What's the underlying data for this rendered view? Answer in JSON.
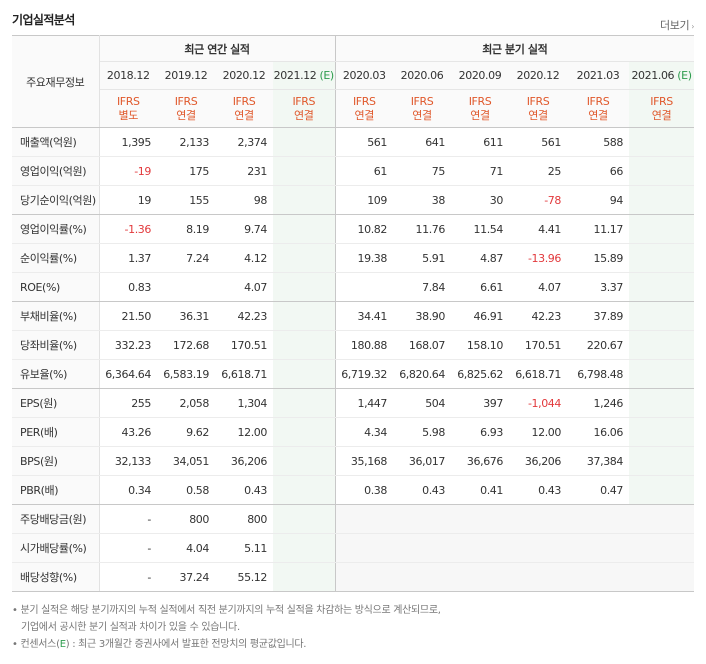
{
  "header": {
    "title": "기업실적분석",
    "more_label": "더보기"
  },
  "table": {
    "row_label_header": "주요재무정보",
    "group_annual": "최근 연간 실적",
    "group_quarter": "최근 분기 실적",
    "columns": [
      {
        "period": "2018.12",
        "std": "IFRS",
        "type": "별도",
        "est": false
      },
      {
        "period": "2019.12",
        "std": "IFRS",
        "type": "연결",
        "est": false
      },
      {
        "period": "2020.12",
        "std": "IFRS",
        "type": "연결",
        "est": false
      },
      {
        "period": "2021.12",
        "est_mark": "(E)",
        "std": "IFRS",
        "type": "연결",
        "est": true
      },
      {
        "period": "2020.03",
        "std": "IFRS",
        "type": "연결",
        "est": false
      },
      {
        "period": "2020.06",
        "std": "IFRS",
        "type": "연결",
        "est": false
      },
      {
        "period": "2020.09",
        "std": "IFRS",
        "type": "연결",
        "est": false
      },
      {
        "period": "2020.12",
        "std": "IFRS",
        "type": "연결",
        "est": false
      },
      {
        "period": "2021.03",
        "std": "IFRS",
        "type": "연결",
        "est": false
      },
      {
        "period": "2021.06",
        "est_mark": "(E)",
        "std": "IFRS",
        "type": "연결",
        "est": true
      }
    ],
    "rows": [
      {
        "label": "매출액(억원)",
        "values": [
          "1,395",
          "2,133",
          "2,374",
          "",
          "561",
          "641",
          "611",
          "561",
          "588",
          ""
        ]
      },
      {
        "label": "영업이익(억원)",
        "values": [
          "-19",
          "175",
          "231",
          "",
          "61",
          "75",
          "71",
          "25",
          "66",
          ""
        ]
      },
      {
        "label": "당기순이익(억원)",
        "values": [
          "19",
          "155",
          "98",
          "",
          "109",
          "38",
          "30",
          "-78",
          "94",
          ""
        ],
        "group_end": true
      },
      {
        "label": "영업이익률(%)",
        "values": [
          "-1.36",
          "8.19",
          "9.74",
          "",
          "10.82",
          "11.76",
          "11.54",
          "4.41",
          "11.17",
          ""
        ]
      },
      {
        "label": "순이익률(%)",
        "values": [
          "1.37",
          "7.24",
          "4.12",
          "",
          "19.38",
          "5.91",
          "4.87",
          "-13.96",
          "15.89",
          ""
        ]
      },
      {
        "label": "ROE(%)",
        "values": [
          "0.83",
          "",
          "4.07",
          "",
          "",
          "7.84",
          "6.61",
          "4.07",
          "3.37",
          ""
        ],
        "group_end": true
      },
      {
        "label": "부채비율(%)",
        "values": [
          "21.50",
          "36.31",
          "42.23",
          "",
          "34.41",
          "38.90",
          "46.91",
          "42.23",
          "37.89",
          ""
        ]
      },
      {
        "label": "당좌비율(%)",
        "values": [
          "332.23",
          "172.68",
          "170.51",
          "",
          "180.88",
          "168.07",
          "158.10",
          "170.51",
          "220.67",
          ""
        ]
      },
      {
        "label": "유보율(%)",
        "values": [
          "6,364.64",
          "6,583.19",
          "6,618.71",
          "",
          "6,719.32",
          "6,820.64",
          "6,825.62",
          "6,618.71",
          "6,798.48",
          ""
        ],
        "group_end": true
      },
      {
        "label": "EPS(원)",
        "values": [
          "255",
          "2,058",
          "1,304",
          "",
          "1,447",
          "504",
          "397",
          "-1,044",
          "1,246",
          ""
        ]
      },
      {
        "label": "PER(배)",
        "values": [
          "43.26",
          "9.62",
          "12.00",
          "",
          "4.34",
          "5.98",
          "6.93",
          "12.00",
          "16.06",
          ""
        ]
      },
      {
        "label": "BPS(원)",
        "values": [
          "32,133",
          "34,051",
          "36,206",
          "",
          "35,168",
          "36,017",
          "36,676",
          "36,206",
          "37,384",
          ""
        ]
      },
      {
        "label": "PBR(배)",
        "values": [
          "0.34",
          "0.58",
          "0.43",
          "",
          "0.38",
          "0.43",
          "0.41",
          "0.43",
          "0.47",
          ""
        ],
        "group_end": true
      },
      {
        "label": "주당배당금(원)",
        "values": [
          "-",
          "800",
          "800",
          "",
          null,
          null,
          null,
          null,
          null,
          null
        ]
      },
      {
        "label": "시가배당률(%)",
        "values": [
          "-",
          "4.04",
          "5.11",
          "",
          null,
          null,
          null,
          null,
          null,
          null
        ]
      },
      {
        "label": "배당성향(%)",
        "values": [
          "-",
          "37.24",
          "55.12",
          "",
          null,
          null,
          null,
          null,
          null,
          null
        ],
        "group_end": true
      }
    ]
  },
  "notes": {
    "line1": "• 분기 실적은 해당 분기까지의 누적 실적에서 직전 분기까지의 누적 실적을 차감하는 방식으로 계산되므로,",
    "line2": "기업에서 공시한 분기 실적과 차이가 있을 수 있습니다.",
    "line3_pre": "• 컨센서스(",
    "line3_e": "E",
    "line3_post": ") : 최근 3개월간 증권사에서 발표한 전망치의 평균값입니다."
  }
}
